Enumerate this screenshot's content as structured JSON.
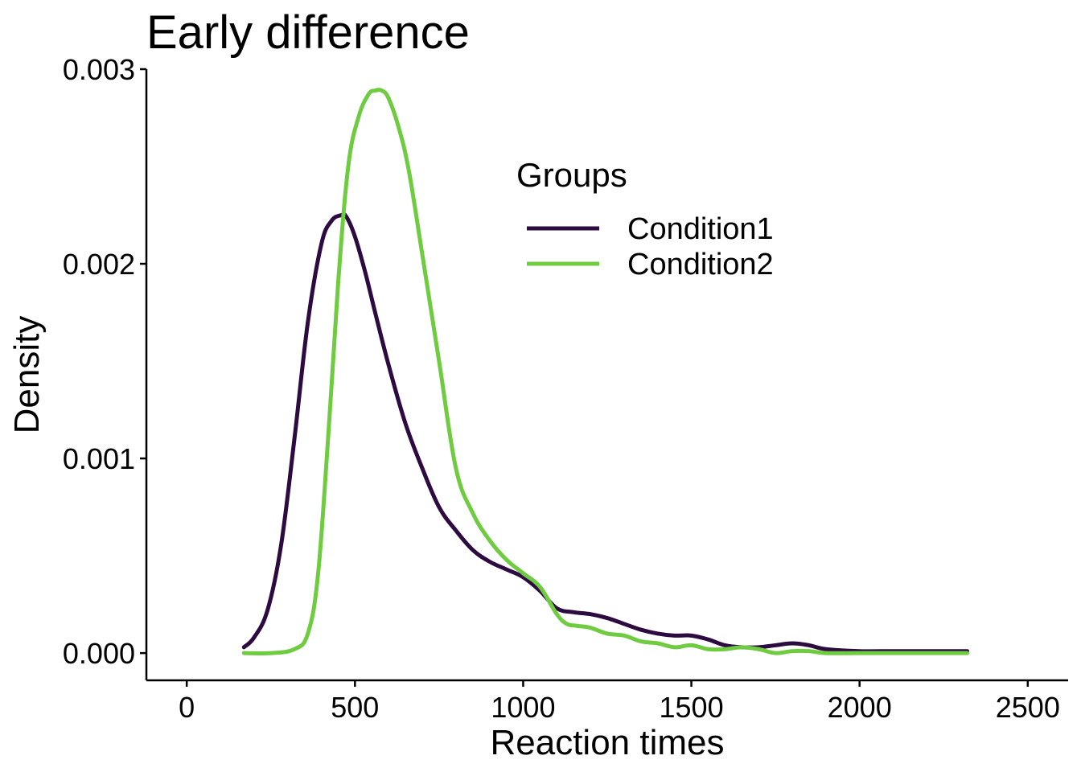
{
  "chart_data": {
    "type": "line",
    "title": "Early difference",
    "xlabel": "Reaction times",
    "ylabel": "Density",
    "xlim": [
      -120,
      2620
    ],
    "ylim": [
      -0.00014,
      0.003
    ],
    "xticks": [
      0,
      500,
      1000,
      1500,
      2000,
      2500
    ],
    "xtick_labels": [
      "0",
      "500",
      "1000",
      "1500",
      "2000",
      "2500"
    ],
    "yticks": [
      0.0,
      0.001,
      0.002,
      0.003
    ],
    "ytick_labels": [
      "0.000",
      "0.001",
      "0.002",
      "0.003"
    ],
    "grid": false,
    "legend": {
      "title": "Groups",
      "position": "top-right"
    },
    "series": [
      {
        "name": "Condition1",
        "color": "#2d0b41",
        "x": [
          170,
          200,
          240,
          280,
          320,
          360,
          400,
          430,
          460,
          475,
          500,
          530,
          560,
          600,
          650,
          700,
          750,
          800,
          850,
          900,
          950,
          1000,
          1050,
          1100,
          1150,
          1200,
          1250,
          1300,
          1350,
          1400,
          1450,
          1500,
          1550,
          1600,
          1650,
          1700,
          1750,
          1800,
          1850,
          1900,
          2000,
          2100,
          2200,
          2320
        ],
        "y": [
          3e-05,
          8e-05,
          0.00022,
          0.00055,
          0.0011,
          0.0017,
          0.0021,
          0.00222,
          0.00225,
          0.00224,
          0.00214,
          0.00196,
          0.00175,
          0.00148,
          0.00118,
          0.00095,
          0.00075,
          0.00063,
          0.00053,
          0.00047,
          0.00043,
          0.00039,
          0.00032,
          0.00023,
          0.00021,
          0.0002,
          0.00018,
          0.00015,
          0.00012,
          0.0001,
          9e-05,
          9e-05,
          7e-05,
          4e-05,
          3e-05,
          3e-05,
          4e-05,
          5e-05,
          4e-05,
          2e-05,
          1e-05,
          1e-05,
          1e-05,
          1e-05
        ]
      },
      {
        "name": "Condition2",
        "color": "#6fcc40",
        "x": [
          170,
          250,
          320,
          360,
          390,
          420,
          450,
          480,
          510,
          540,
          560,
          580,
          600,
          630,
          660,
          700,
          750,
          800,
          850,
          900,
          950,
          1000,
          1050,
          1100,
          1130,
          1160,
          1200,
          1250,
          1300,
          1350,
          1400,
          1450,
          1500,
          1550,
          1600,
          1650,
          1700,
          1750,
          1800,
          1850,
          1900,
          2000,
          2100,
          2200,
          2320
        ],
        "y": [
          0.0,
          0.0,
          2e-05,
          0.0001,
          0.0004,
          0.0011,
          0.0019,
          0.0025,
          0.00275,
          0.00287,
          0.00289,
          0.00289,
          0.00285,
          0.0027,
          0.00248,
          0.00205,
          0.0015,
          0.00095,
          0.00072,
          0.00058,
          0.00048,
          0.00041,
          0.00034,
          0.0002,
          0.00015,
          0.00014,
          0.00013,
          0.0001,
          9e-05,
          6e-05,
          5e-05,
          3e-05,
          4e-05,
          2e-05,
          2e-05,
          3e-05,
          2e-05,
          0.0,
          1e-05,
          1e-05,
          0.0,
          0.0,
          0.0,
          0.0,
          0.0
        ]
      }
    ]
  }
}
